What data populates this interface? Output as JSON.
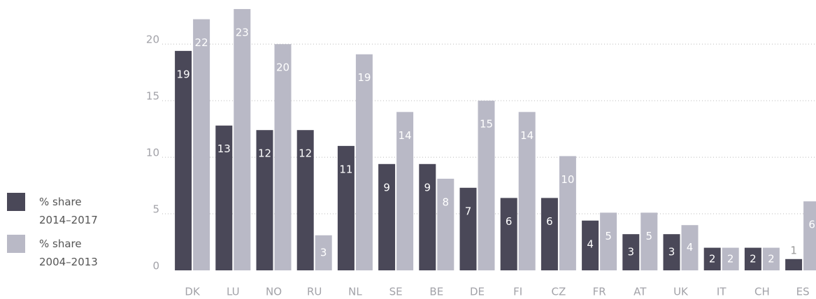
{
  "chart_data": {
    "type": "bar",
    "categories": [
      "DK",
      "LU",
      "NO",
      "RU",
      "NL",
      "SE",
      "BE",
      "DE",
      "FI",
      "CZ",
      "FR",
      "AT",
      "UK",
      "IT",
      "CH",
      "ES"
    ],
    "series": [
      {
        "name": "% share 2014–2017",
        "color": "#4a4858",
        "values": [
          19.4,
          12.8,
          12.4,
          12.4,
          11.0,
          9.4,
          9.4,
          7.3,
          6.4,
          6.4,
          4.4,
          3.2,
          3.2,
          2.0,
          2.0,
          1.0
        ],
        "value_labels": [
          "19",
          "13",
          "12",
          "12",
          "11",
          "9",
          "9",
          "7",
          "6",
          "6",
          "4",
          "3",
          "3",
          "2",
          "2",
          "1"
        ]
      },
      {
        "name": "% share 2004–2013",
        "color": "#b9b9c6",
        "values": [
          22.2,
          23.1,
          20.0,
          3.1,
          19.1,
          14.0,
          8.1,
          15.0,
          14.0,
          10.1,
          5.1,
          5.1,
          4.0,
          2.0,
          2.0,
          6.1
        ],
        "value_labels": [
          "22",
          "23",
          "20",
          "3",
          "19",
          "14",
          "8",
          "15",
          "14",
          "10",
          "5",
          "5",
          "4",
          "2",
          "2",
          "6"
        ]
      }
    ],
    "ylim": [
      0,
      23.9
    ],
    "yticks": [
      0,
      5,
      10,
      15,
      20
    ],
    "grid": true,
    "legend": "left"
  }
}
